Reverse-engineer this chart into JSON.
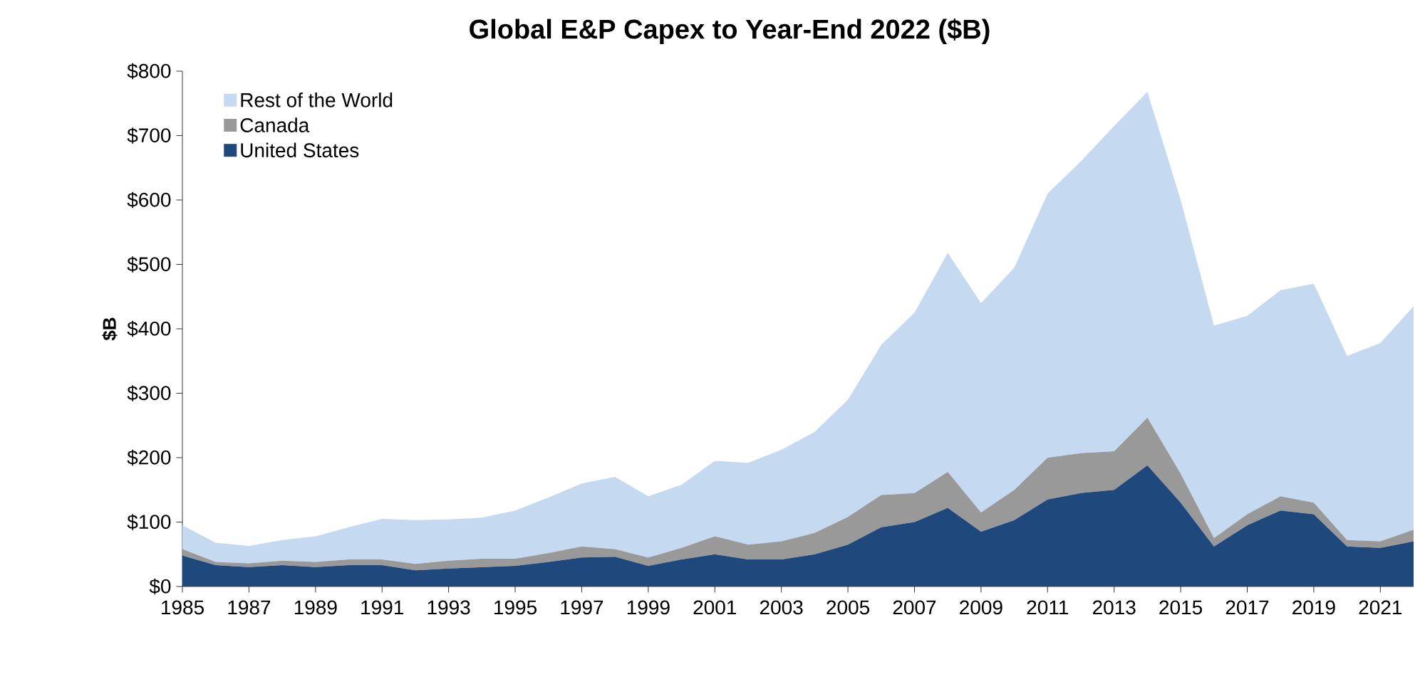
{
  "chart_data": {
    "type": "area",
    "stacked": true,
    "title": "Global E&P Capex to Year-End 2022 ($B)",
    "ylabel": "$B",
    "x": [
      1985,
      1986,
      1987,
      1988,
      1989,
      1990,
      1991,
      1992,
      1993,
      1994,
      1995,
      1996,
      1997,
      1998,
      1999,
      2000,
      2001,
      2002,
      2003,
      2004,
      2005,
      2006,
      2007,
      2008,
      2009,
      2010,
      2011,
      2012,
      2013,
      2014,
      2015,
      2016,
      2017,
      2018,
      2019,
      2020,
      2021,
      2022
    ],
    "series": [
      {
        "name": "United States",
        "color": "#1f497d",
        "values": [
          48,
          33,
          30,
          33,
          30,
          33,
          33,
          25,
          28,
          30,
          32,
          38,
          45,
          46,
          32,
          42,
          50,
          42,
          42,
          50,
          65,
          92,
          100,
          122,
          85,
          103,
          135,
          145,
          150,
          188,
          130,
          62,
          95,
          118,
          112,
          62,
          60,
          70
        ]
      },
      {
        "name": "Canada",
        "color": "#999999",
        "values": [
          10,
          5,
          6,
          7,
          8,
          9,
          9,
          10,
          12,
          13,
          11,
          14,
          17,
          12,
          13,
          18,
          28,
          23,
          28,
          33,
          43,
          50,
          45,
          56,
          30,
          47,
          65,
          62,
          60,
          74,
          45,
          13,
          17,
          22,
          18,
          10,
          10,
          18
        ]
      },
      {
        "name": "Rest of the World",
        "color": "#c5d9f1",
        "values": [
          37,
          30,
          27,
          32,
          40,
          50,
          63,
          68,
          64,
          64,
          75,
          86,
          98,
          112,
          95,
          98,
          117,
          127,
          142,
          157,
          182,
          233,
          280,
          340,
          325,
          345,
          410,
          453,
          505,
          506,
          425,
          330,
          308,
          320,
          340,
          286,
          308,
          347
        ]
      }
    ],
    "xlim": [
      1985,
      2022
    ],
    "xticks": [
      1985,
      1987,
      1989,
      1991,
      1993,
      1995,
      1997,
      1999,
      2001,
      2003,
      2005,
      2007,
      2009,
      2011,
      2013,
      2015,
      2017,
      2019,
      2021
    ],
    "ylim": [
      0,
      800
    ],
    "yticks": [
      {
        "value": 0,
        "label": "$0"
      },
      {
        "value": 100,
        "label": "$100"
      },
      {
        "value": 200,
        "label": "$200"
      },
      {
        "value": 300,
        "label": "$300"
      },
      {
        "value": 400,
        "label": "$400"
      },
      {
        "value": 500,
        "label": "$500"
      },
      {
        "value": 600,
        "label": "$600"
      },
      {
        "value": 700,
        "label": "$700"
      },
      {
        "value": 800,
        "label": "$800"
      }
    ],
    "legend": "top left"
  }
}
